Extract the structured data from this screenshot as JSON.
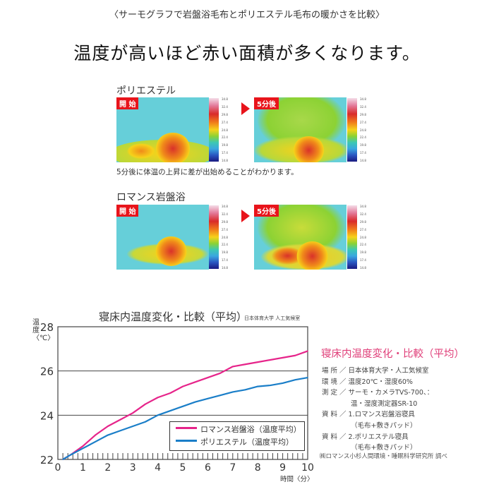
{
  "header": {
    "subtitle": "〈サーモグラフで岩盤浴毛布とポリエステル毛布の暖かさを比較〉",
    "headline": "温度が高いほど赤い面積が多くなります。"
  },
  "thermographs": [
    {
      "title": "ポリエステル",
      "start_label": "開 始",
      "after_label": "5分後",
      "caption": "5分後に体温の上昇に差が出始めることがわかります。"
    },
    {
      "title": "ロマンス岩盤浴",
      "start_label": "開 始",
      "after_label": "5分後"
    }
  ],
  "scale_labels": [
    "34.8",
    "32.4",
    "29.8",
    "27.4",
    "24.8",
    "22.4",
    "19.8",
    "17.4",
    "14.8"
  ],
  "chart_data": {
    "type": "line",
    "title": "寝床内温度変化・比較（平均）",
    "source": "日本体育大学 人工気候室",
    "ylabel": "温度〈℃〉",
    "xlabel": "時間〈分〉",
    "xlim": [
      0,
      10
    ],
    "ylim": [
      22,
      28
    ],
    "xticks": [
      "0",
      "1",
      "2",
      "3",
      "4",
      "5",
      "6",
      "7",
      "8",
      "9",
      "10"
    ],
    "yticks": [
      "22",
      "24",
      "26",
      "28"
    ],
    "grid": "horizontal",
    "legend_position": "bottom-right",
    "x": [
      0.2,
      0.5,
      1,
      1.5,
      2,
      2.5,
      3,
      3.5,
      4,
      4.5,
      5,
      5.5,
      6,
      6.5,
      7,
      7.5,
      8,
      8.5,
      9,
      9.5,
      10
    ],
    "series": [
      {
        "name": "ロマンス岩盤浴（温度平均）",
        "color": "#e6248a",
        "values": [
          22.0,
          22.2,
          22.6,
          23.1,
          23.5,
          23.8,
          24.1,
          24.5,
          24.8,
          25.0,
          25.3,
          25.5,
          25.7,
          25.9,
          26.2,
          26.3,
          26.4,
          26.5,
          26.6,
          26.7,
          26.9
        ]
      },
      {
        "name": "ポリエステル（温度平均）",
        "color": "#1a7ec8",
        "values": [
          22.0,
          22.2,
          22.5,
          22.8,
          23.1,
          23.3,
          23.5,
          23.7,
          24.0,
          24.2,
          24.4,
          24.6,
          24.75,
          24.9,
          25.05,
          25.15,
          25.3,
          25.35,
          25.45,
          25.6,
          25.7
        ]
      }
    ]
  },
  "info": {
    "title": "寝床内温度変化・比較（平均）",
    "lines": [
      "場 所 ／ 日本体育大学・人工気候室",
      "環 境 ／ 温度20℃・湿度60%",
      "測 定 ／ サーモ・カメラTVS-700、：",
      "　　　　 温・湿度測定器SR-10",
      "資 料 ／ 1.ロマンス岩盤浴寝具",
      "　　　　 （毛布+敷きパッド）",
      "資 料 ／ 2.ポリエステル寝具",
      "　　　　 （毛布+敷きパッド）"
    ],
    "footer": "㈱ロマンス小杉人間環境・睡眠科学研究所 調べ"
  }
}
